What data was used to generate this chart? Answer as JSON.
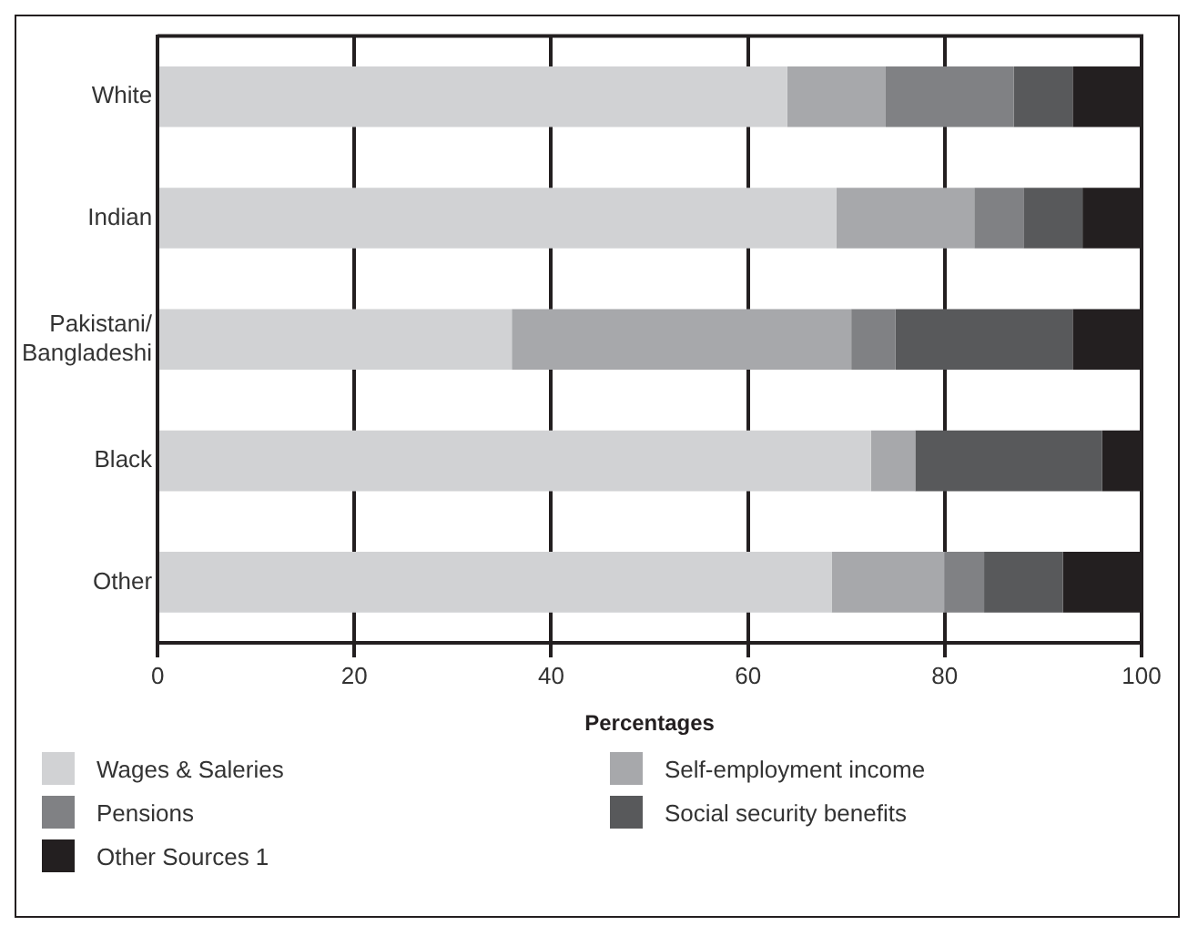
{
  "chart_data": {
    "type": "bar",
    "orientation": "horizontal",
    "stacked": true,
    "xlabel": "Percentages",
    "categories": [
      "White",
      "Indian",
      "Pakistani/\nBangladeshi",
      "Black",
      "Other"
    ],
    "series": [
      {
        "name": "Wages & Saleries",
        "color": "#d1d2d4",
        "values": [
          64,
          69,
          36,
          72.5,
          68.5
        ]
      },
      {
        "name": "Self-employment income",
        "color": "#a7a8ab",
        "values": [
          10,
          14,
          34.5,
          4.5,
          11.5
        ]
      },
      {
        "name": "Pensions",
        "color": "#808184",
        "values": [
          13,
          5,
          4.5,
          0,
          4
        ]
      },
      {
        "name": "Social security benefits",
        "color": "#58595b",
        "values": [
          6,
          6,
          18,
          19,
          8
        ]
      },
      {
        "name": "Other Sources 1",
        "color": "#231f20",
        "values": [
          7,
          6,
          7,
          4,
          8
        ]
      }
    ],
    "xlim": [
      0,
      100
    ],
    "xticks": [
      0,
      20,
      40,
      60,
      80,
      100
    ],
    "grid": "x",
    "legend": "bottom"
  }
}
